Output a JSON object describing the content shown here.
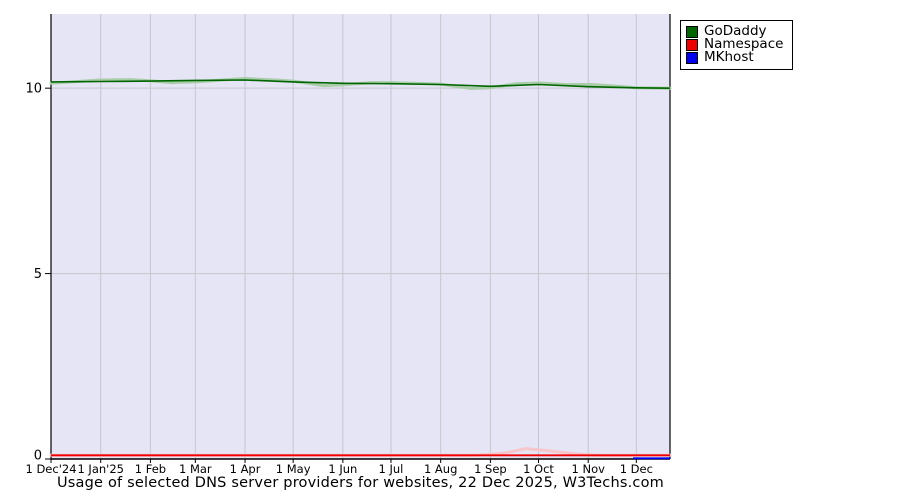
{
  "chart_data": {
    "type": "line",
    "title": "Usage of selected DNS server providers for websites, 22 Dec 2025, W3Techs.com",
    "xlabel": "",
    "ylabel": "",
    "ylim": [
      0,
      12
    ],
    "grid": true,
    "legend_position": "outside-top-right",
    "plot_bg": "#e5e5f5",
    "grid_color": "#c6c6ce",
    "axis_color": "#000000",
    "y_ticks": [
      {
        "value": 0,
        "label": "0"
      },
      {
        "value": 5,
        "label": "5"
      },
      {
        "value": 10,
        "label": "10"
      }
    ],
    "x_axis": {
      "start_label": "1 Dec'24",
      "end_date": "22 Dec 2025",
      "total_days": 386,
      "ticks": [
        {
          "day": 0,
          "label": "1 Dec'24"
        },
        {
          "day": 31,
          "label": "1 Jan'25"
        },
        {
          "day": 62,
          "label": "1 Feb"
        },
        {
          "day": 90,
          "label": "1 Mar"
        },
        {
          "day": 121,
          "label": "1 Apr"
        },
        {
          "day": 151,
          "label": "1 May"
        },
        {
          "day": 182,
          "label": "1 Jun"
        },
        {
          "day": 212,
          "label": "1 Jul"
        },
        {
          "day": 243,
          "label": "1 Aug"
        },
        {
          "day": 274,
          "label": "1 Sep"
        },
        {
          "day": 304,
          "label": "1 Oct"
        },
        {
          "day": 335,
          "label": "1 Nov"
        },
        {
          "day": 365,
          "label": "1 Dec"
        }
      ]
    },
    "series": [
      {
        "name": "GoDaddy",
        "color": "#006400",
        "halo_color": "#a9cda9",
        "points": [
          [
            0,
            10.17
          ],
          [
            31,
            10.18
          ],
          [
            62,
            10.19
          ],
          [
            90,
            10.21
          ],
          [
            121,
            10.22
          ],
          [
            151,
            10.17
          ],
          [
            182,
            10.13
          ],
          [
            212,
            10.12
          ],
          [
            243,
            10.1
          ],
          [
            274,
            10.05
          ],
          [
            304,
            10.1
          ],
          [
            335,
            10.04
          ],
          [
            365,
            10.01
          ],
          [
            386,
            10.0
          ]
        ],
        "halo_points": [
          [
            0,
            10.13
          ],
          [
            31,
            10.22
          ],
          [
            50,
            10.23
          ],
          [
            62,
            10.2
          ],
          [
            75,
            10.15
          ],
          [
            90,
            10.17
          ],
          [
            121,
            10.26
          ],
          [
            140,
            10.22
          ],
          [
            151,
            10.19
          ],
          [
            170,
            10.07
          ],
          [
            182,
            10.09
          ],
          [
            200,
            10.15
          ],
          [
            212,
            10.15
          ],
          [
            243,
            10.11
          ],
          [
            262,
            9.99
          ],
          [
            274,
            10.01
          ],
          [
            290,
            10.12
          ],
          [
            304,
            10.14
          ],
          [
            320,
            10.1
          ],
          [
            337,
            10.1
          ],
          [
            350,
            10.06
          ],
          [
            365,
            10.01
          ],
          [
            386,
            10.0
          ]
        ]
      },
      {
        "name": "Namespace",
        "color": "#ee0000",
        "halo_color": "#f7c6cb",
        "points": [
          [
            0,
            0.1
          ],
          [
            31,
            0.1
          ],
          [
            62,
            0.1
          ],
          [
            90,
            0.1
          ],
          [
            121,
            0.1
          ],
          [
            151,
            0.1
          ],
          [
            182,
            0.1
          ],
          [
            212,
            0.1
          ],
          [
            243,
            0.1
          ],
          [
            274,
            0.1
          ],
          [
            304,
            0.1
          ],
          [
            335,
            0.1
          ],
          [
            365,
            0.1
          ],
          [
            386,
            0.1
          ]
        ],
        "halo_points": [
          [
            0,
            0.1
          ],
          [
            265,
            0.1
          ],
          [
            283,
            0.16
          ],
          [
            296,
            0.28
          ],
          [
            310,
            0.22
          ],
          [
            326,
            0.14
          ],
          [
            340,
            0.1
          ],
          [
            386,
            0.1
          ]
        ]
      },
      {
        "name": "MKhost",
        "color": "#0000ee",
        "halo_color": null,
        "points": [
          [
            363,
            0.02
          ],
          [
            386,
            0.02
          ]
        ]
      }
    ]
  }
}
